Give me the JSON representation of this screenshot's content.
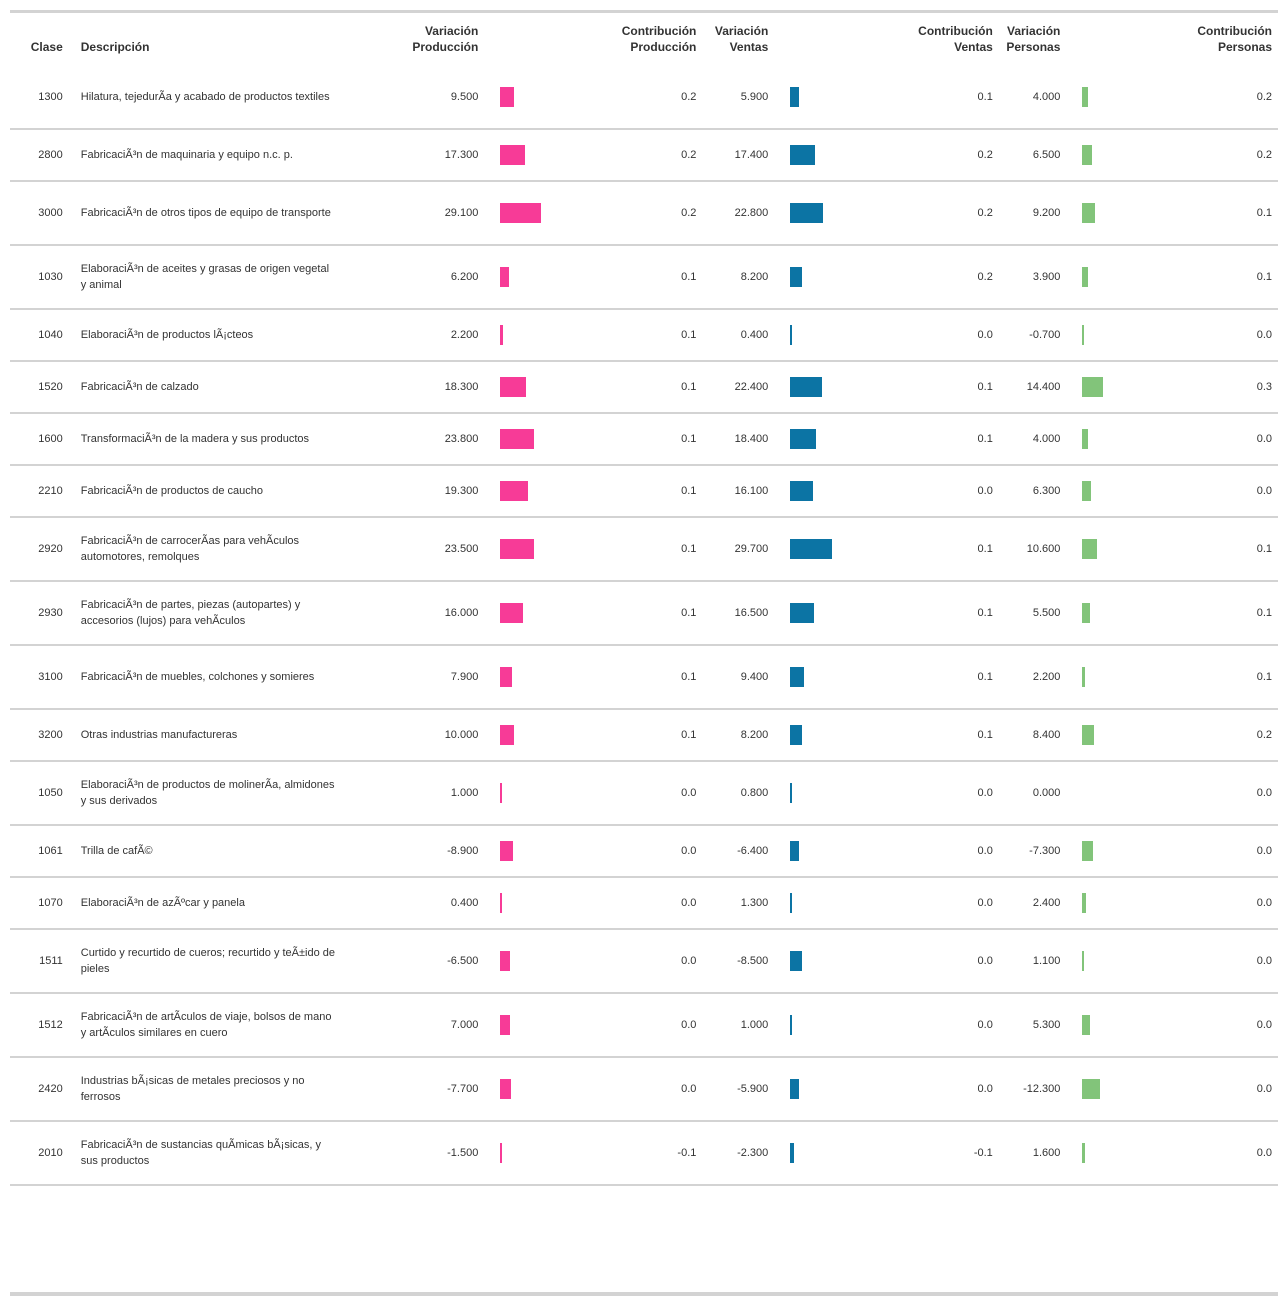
{
  "colors": {
    "produccion": "#f73b97",
    "ventas": "#0c74a4",
    "personas": "#82c47a"
  },
  "headers": {
    "clase": "Clase",
    "descripcion": "Descripción",
    "var_prod": "Variación\nProducción",
    "con_prod": "Contribución\nProducción",
    "var_vent": "Variación\nVentas",
    "con_vent": "Contribución\nVentas",
    "var_pers": "Variación\nPersonas",
    "con_pers": "Contribución\nPersonas"
  },
  "rows": [
    {
      "clase": "1300",
      "descripcion": "Hilatura, tejedurÃa y acabado de productos textiles",
      "var_prod": "9.500",
      "con_prod": "0.2",
      "var_vent": "5.900",
      "con_vent": "0.1",
      "var_pers": "4.000",
      "con_pers": "0.2"
    },
    {
      "clase": "2800",
      "descripcion": "FabricaciÃ³n de maquinaria y equipo n.c. p.",
      "var_prod": "17.300",
      "con_prod": "0.2",
      "var_vent": "17.400",
      "con_vent": "0.2",
      "var_pers": "6.500",
      "con_pers": "0.2"
    },
    {
      "clase": "3000",
      "descripcion": "FabricaciÃ³n de otros tipos de equipo de transporte",
      "var_prod": "29.100",
      "con_prod": "0.2",
      "var_vent": "22.800",
      "con_vent": "0.2",
      "var_pers": "9.200",
      "con_pers": "0.1"
    },
    {
      "clase": "1030",
      "descripcion": "ElaboraciÃ³n de aceites y grasas de origen vegetal y animal",
      "var_prod": "6.200",
      "con_prod": "0.1",
      "var_vent": "8.200",
      "con_vent": "0.2",
      "var_pers": "3.900",
      "con_pers": "0.1"
    },
    {
      "clase": "1040",
      "descripcion": "ElaboraciÃ³n de productos lÃ¡cteos",
      "var_prod": "2.200",
      "con_prod": "0.1",
      "var_vent": "0.400",
      "con_vent": "0.0",
      "var_pers": "-0.700",
      "con_pers": "0.0"
    },
    {
      "clase": "1520",
      "descripcion": "FabricaciÃ³n de calzado",
      "var_prod": "18.300",
      "con_prod": "0.1",
      "var_vent": "22.400",
      "con_vent": "0.1",
      "var_pers": "14.400",
      "con_pers": "0.3"
    },
    {
      "clase": "1600",
      "descripcion": "TransformaciÃ³n de la madera y sus productos",
      "var_prod": "23.800",
      "con_prod": "0.1",
      "var_vent": "18.400",
      "con_vent": "0.1",
      "var_pers": "4.000",
      "con_pers": "0.0"
    },
    {
      "clase": "2210",
      "descripcion": "FabricaciÃ³n de productos de caucho",
      "var_prod": "19.300",
      "con_prod": "0.1",
      "var_vent": "16.100",
      "con_vent": "0.0",
      "var_pers": "6.300",
      "con_pers": "0.0"
    },
    {
      "clase": "2920",
      "descripcion": "FabricaciÃ³n de carrocerÃas para vehÃculos automotores, remolques",
      "var_prod": "23.500",
      "con_prod": "0.1",
      "var_vent": "29.700",
      "con_vent": "0.1",
      "var_pers": "10.600",
      "con_pers": "0.1"
    },
    {
      "clase": "2930",
      "descripcion": "FabricaciÃ³n de partes, piezas (autopartes) y accesorios (lujos) para vehÃculos",
      "var_prod": "16.000",
      "con_prod": "0.1",
      "var_vent": "16.500",
      "con_vent": "0.1",
      "var_pers": "5.500",
      "con_pers": "0.1"
    },
    {
      "clase": "3100",
      "descripcion": "FabricaciÃ³n de muebles, colchones y somieres",
      "var_prod": "7.900",
      "con_prod": "0.1",
      "var_vent": "9.400",
      "con_vent": "0.1",
      "var_pers": "2.200",
      "con_pers": "0.1"
    },
    {
      "clase": "3200",
      "descripcion": "Otras industrias manufactureras",
      "var_prod": "10.000",
      "con_prod": "0.1",
      "var_vent": "8.200",
      "con_vent": "0.1",
      "var_pers": "8.400",
      "con_pers": "0.2"
    },
    {
      "clase": "1050",
      "descripcion": "ElaboraciÃ³n de productos de molinerÃa, almidones y sus derivados",
      "var_prod": "1.000",
      "con_prod": "0.0",
      "var_vent": "0.800",
      "con_vent": "0.0",
      "var_pers": "0.000",
      "con_pers": "0.0"
    },
    {
      "clase": "1061",
      "descripcion": "Trilla de cafÃ©",
      "var_prod": "-8.900",
      "con_prod": "0.0",
      "var_vent": "-6.400",
      "con_vent": "0.0",
      "var_pers": "-7.300",
      "con_pers": "0.0"
    },
    {
      "clase": "1070",
      "descripcion": "ElaboraciÃ³n de azÃºcar y panela",
      "var_prod": "0.400",
      "con_prod": "0.0",
      "var_vent": "1.300",
      "con_vent": "0.0",
      "var_pers": "2.400",
      "con_pers": "0.0"
    },
    {
      "clase": "1511",
      "descripcion": "Curtido y recurtido de cueros; recurtido y teÃ±ido de pieles",
      "var_prod": "-6.500",
      "con_prod": "0.0",
      "var_vent": "-8.500",
      "con_vent": "0.0",
      "var_pers": "1.100",
      "con_pers": "0.0"
    },
    {
      "clase": "1512",
      "descripcion": "FabricaciÃ³n de artÃculos de viaje, bolsos de mano y artÃculos similares en cuero",
      "var_prod": "7.000",
      "con_prod": "0.0",
      "var_vent": "1.000",
      "con_vent": "0.0",
      "var_pers": "5.300",
      "con_pers": "0.0"
    },
    {
      "clase": "2420",
      "descripcion": "Industrias bÃ¡sicas de metales preciosos y no ferrosos",
      "var_prod": "-7.700",
      "con_prod": "0.0",
      "var_vent": "-5.900",
      "con_vent": "0.0",
      "var_pers": "-12.300",
      "con_pers": "0.0"
    },
    {
      "clase": "2010",
      "descripcion": "FabricaciÃ³n de sustancias quÃmicas bÃ¡sicas, y sus productos",
      "var_prod": "-1.500",
      "con_prod": "-0.1",
      "var_vent": "-2.300",
      "con_vent": "-0.1",
      "var_pers": "1.600",
      "con_pers": "0.0"
    }
  ],
  "chart_data": {
    "type": "table",
    "categories": [
      "1300",
      "2800",
      "3000",
      "1030",
      "1040",
      "1520",
      "1600",
      "2210",
      "2920",
      "2930",
      "3100",
      "3200",
      "1050",
      "1061",
      "1070",
      "1511",
      "1512",
      "2420",
      "2010"
    ],
    "series": [
      {
        "name": "Variación Producción",
        "values": [
          9.5,
          17.3,
          29.1,
          6.2,
          2.2,
          18.3,
          23.8,
          19.3,
          23.5,
          16.0,
          7.9,
          10.0,
          1.0,
          -8.9,
          0.4,
          -6.5,
          7.0,
          -7.7,
          -1.5
        ]
      },
      {
        "name": "Contribución Producción",
        "values": [
          0.2,
          0.2,
          0.2,
          0.1,
          0.1,
          0.1,
          0.1,
          0.1,
          0.1,
          0.1,
          0.1,
          0.1,
          0.0,
          0.0,
          0.0,
          0.0,
          0.0,
          0.0,
          -0.1
        ]
      },
      {
        "name": "Variación Ventas",
        "values": [
          5.9,
          17.4,
          22.8,
          8.2,
          0.4,
          22.4,
          18.4,
          16.1,
          29.7,
          16.5,
          9.4,
          8.2,
          0.8,
          -6.4,
          1.3,
          -8.5,
          1.0,
          -5.9,
          -2.3
        ]
      },
      {
        "name": "Contribución Ventas",
        "values": [
          0.1,
          0.2,
          0.2,
          0.2,
          0.0,
          0.1,
          0.1,
          0.0,
          0.1,
          0.1,
          0.1,
          0.1,
          0.0,
          0.0,
          0.0,
          0.0,
          0.0,
          0.0,
          -0.1
        ]
      },
      {
        "name": "Variación Personas",
        "values": [
          4.0,
          6.5,
          9.2,
          3.9,
          -0.7,
          14.4,
          4.0,
          6.3,
          10.6,
          5.5,
          2.2,
          8.4,
          0.0,
          -7.3,
          2.4,
          1.1,
          5.3,
          -12.3,
          1.6
        ]
      },
      {
        "name": "Contribución Personas",
        "values": [
          0.2,
          0.2,
          0.1,
          0.1,
          0.0,
          0.3,
          0.0,
          0.0,
          0.1,
          0.1,
          0.1,
          0.2,
          0.0,
          0.0,
          0.0,
          0.0,
          0.0,
          0.0,
          0.0
        ]
      }
    ],
    "bar_scale_max": 29.7
  }
}
